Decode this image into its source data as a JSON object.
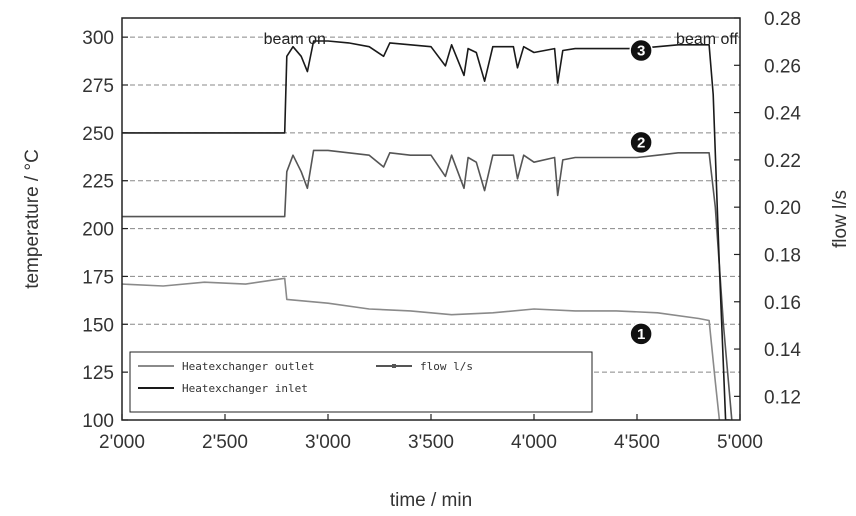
{
  "chart_data": {
    "type": "line",
    "title": "",
    "xlabel": "time  / min",
    "ylabel": "temperature / °C",
    "y2label": "flow l/s",
    "xlim": [
      2000,
      5000
    ],
    "ylim": [
      100,
      310
    ],
    "y2lim": [
      0.11,
      0.28
    ],
    "grid": "dashed horizontal lines",
    "legend_position": "bottom-left",
    "x_ticks": [
      "2'000",
      "2'500",
      "3'000",
      "3'500",
      "4'000",
      "4'500",
      "5'000"
    ],
    "y_ticks": [
      "100",
      "125",
      "150",
      "175",
      "200",
      "225",
      "250",
      "275",
      "300"
    ],
    "y2_ticks": [
      "0.12",
      "0.14",
      "0.16",
      "0.18",
      "0.20",
      "0.22",
      "0.24",
      "0.26",
      "0.28"
    ],
    "annotations": [
      {
        "text": "beam on",
        "x": 2800
      },
      {
        "text": "beam off",
        "x": 4840
      }
    ],
    "markers": [
      {
        "label": "3",
        "x": 4520,
        "y": 293
      },
      {
        "label": "2",
        "x": 4520,
        "y": 245
      },
      {
        "label": "1",
        "x": 4520,
        "y": 145
      }
    ],
    "series": [
      {
        "name": "Heatexchanger inlet",
        "color": "#1a1a1a",
        "axis": "left",
        "x": [
          2000,
          2790,
          2800,
          2830,
          2870,
          2900,
          2930,
          3000,
          3100,
          3200,
          3270,
          3300,
          3400,
          3500,
          3570,
          3600,
          3660,
          3680,
          3720,
          3760,
          3800,
          3900,
          3920,
          3950,
          4000,
          4100,
          4115,
          4140,
          4200,
          4300,
          4400,
          4500,
          4600,
          4700,
          4850,
          4870,
          4900,
          4930,
          4950
        ],
        "values": [
          250,
          250,
          290,
          295,
          290,
          282,
          298,
          298,
          297,
          295,
          290,
          297,
          296,
          295,
          285,
          296,
          280,
          294,
          292,
          277,
          295,
          295,
          284,
          295,
          292,
          294,
          276,
          293,
          294,
          294,
          294,
          294,
          295,
          296,
          296,
          270,
          180,
          100,
          100
        ]
      },
      {
        "name": "Heatexchanger outlet",
        "color": "#8a8a8a",
        "axis": "left",
        "x": [
          2000,
          2200,
          2400,
          2600,
          2790,
          2800,
          3000,
          3200,
          3400,
          3500,
          3600,
          3800,
          4000,
          4200,
          4400,
          4600,
          4800,
          4850,
          4880,
          4900
        ],
        "values": [
          171,
          170,
          172,
          171,
          174,
          163,
          161,
          158,
          157,
          156,
          155,
          156,
          158,
          157,
          157,
          156,
          153,
          152,
          120,
          100
        ]
      },
      {
        "name": "flow l/s",
        "color": "#555555",
        "axis": "right",
        "x": [
          2000,
          2790,
          2800,
          2830,
          2870,
          2900,
          2930,
          3000,
          3100,
          3200,
          3270,
          3300,
          3400,
          3500,
          3570,
          3600,
          3660,
          3680,
          3720,
          3760,
          3800,
          3900,
          3920,
          3950,
          4000,
          4100,
          4115,
          4140,
          4200,
          4300,
          4400,
          4500,
          4600,
          4700,
          4850,
          4880,
          4920,
          4960
        ],
        "values": [
          0.196,
          0.196,
          0.215,
          0.222,
          0.215,
          0.208,
          0.224,
          0.224,
          0.223,
          0.222,
          0.217,
          0.223,
          0.222,
          0.222,
          0.213,
          0.222,
          0.208,
          0.221,
          0.219,
          0.207,
          0.222,
          0.222,
          0.212,
          0.222,
          0.219,
          0.221,
          0.205,
          0.22,
          0.221,
          0.221,
          0.221,
          0.221,
          0.222,
          0.223,
          0.223,
          0.2,
          0.15,
          0.11
        ]
      }
    ]
  }
}
